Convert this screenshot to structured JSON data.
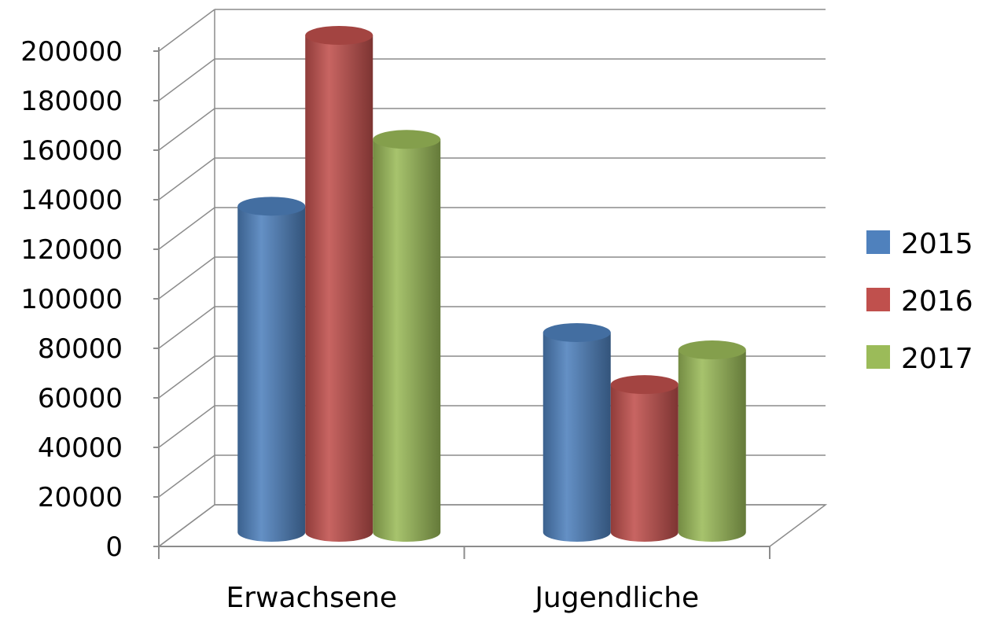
{
  "chart_data": {
    "type": "bar",
    "style": "3d-cylinder",
    "title": "",
    "xlabel": "",
    "ylabel": "",
    "categories": [
      "Erwachsene",
      "Jugendliche"
    ],
    "series": [
      {
        "name": "2015",
        "color": "#4f81bd",
        "values": [
          131000,
          80000
        ]
      },
      {
        "name": "2016",
        "color": "#c0504d",
        "values": [
          200000,
          59000
        ]
      },
      {
        "name": "2017",
        "color": "#9bbb59",
        "values": [
          158000,
          73000
        ]
      }
    ],
    "ylim": [
      0,
      200000
    ],
    "yticks": [
      0,
      20000,
      40000,
      60000,
      80000,
      100000,
      120000,
      140000,
      160000,
      180000,
      200000
    ],
    "ytick_labels": [
      "0",
      "20000",
      "40000",
      "60000",
      "80000",
      "100000",
      "120000",
      "140000",
      "160000",
      "180000",
      "200000"
    ],
    "grid": true,
    "legend_position": "right"
  }
}
